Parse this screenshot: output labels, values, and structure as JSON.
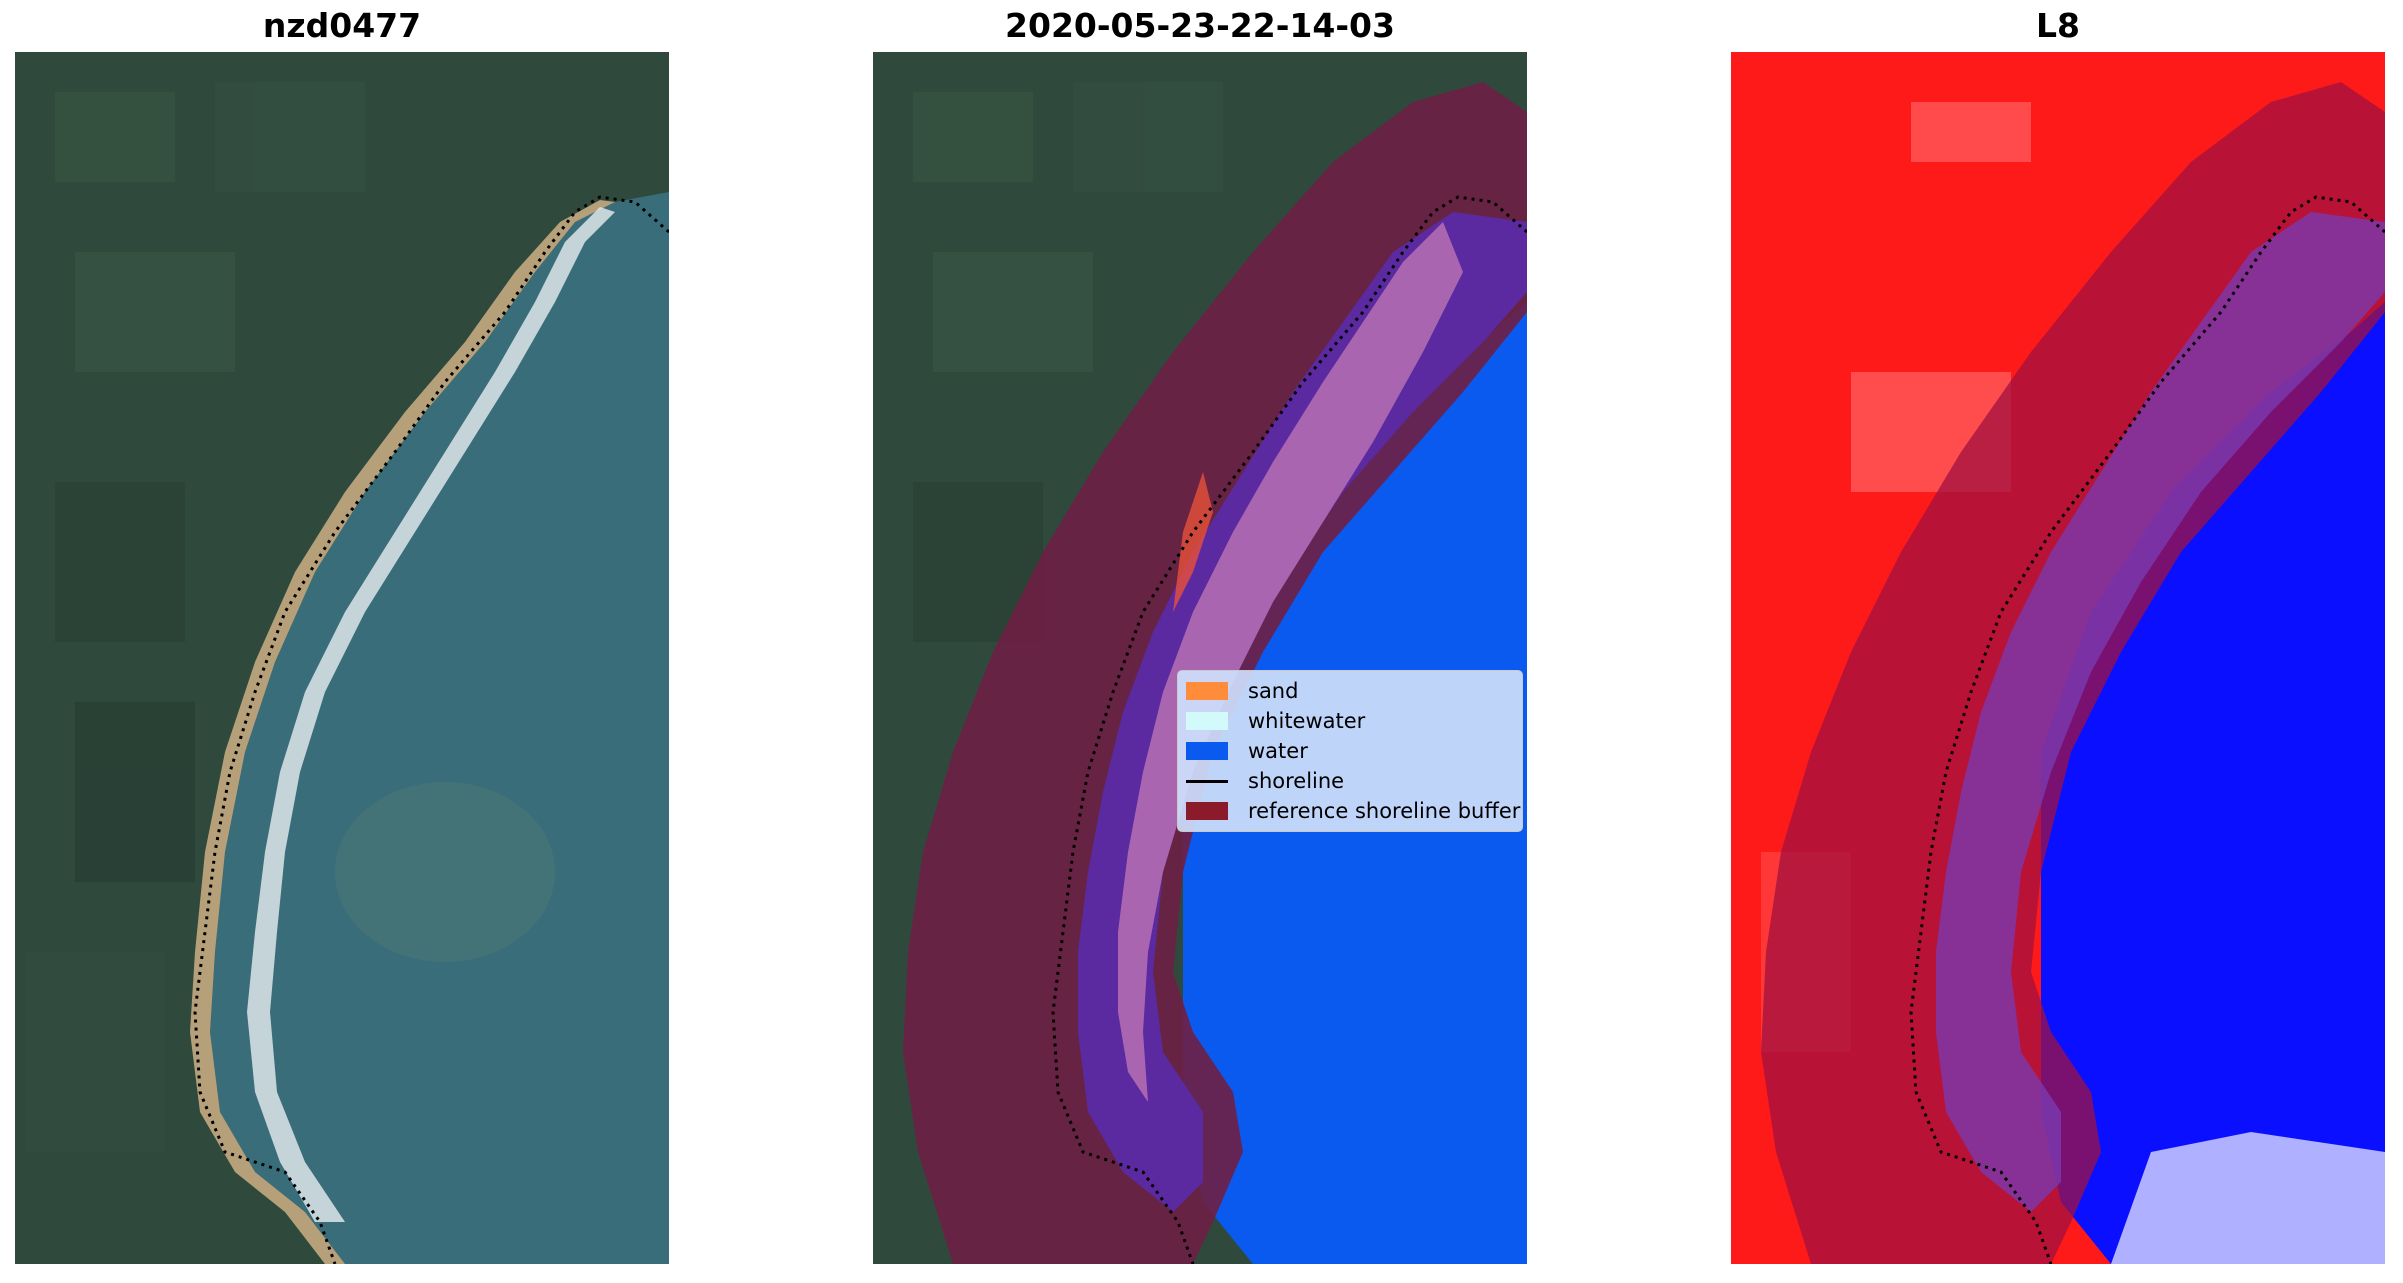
{
  "panels": [
    {
      "title": "nzd0477",
      "kind": "rgb-image"
    },
    {
      "title": "2020-05-23-22-14-03",
      "kind": "classification-overlay"
    },
    {
      "title": "L8",
      "kind": "index-image"
    }
  ],
  "legend": {
    "items": [
      {
        "label": "sand",
        "color": "#ff8c3a",
        "type": "patch"
      },
      {
        "label": "whitewater",
        "color": "#d3fafa",
        "type": "patch"
      },
      {
        "label": "water",
        "color": "#0a5af0",
        "type": "patch"
      },
      {
        "label": "shoreline",
        "color": "#000000",
        "type": "line"
      },
      {
        "label": "reference shoreline buffer",
        "color": "#8b1a2a",
        "type": "patch"
      }
    ]
  },
  "colors": {
    "land": "#2f4a3c",
    "sea": "#3a6d7a",
    "beach": "#b6a07a",
    "surf": "#e8eef0",
    "buffer": "#6e1f44",
    "water_class": "#0a5af0",
    "index_land": "#ff1a1a",
    "index_water": "#0a10ff"
  }
}
